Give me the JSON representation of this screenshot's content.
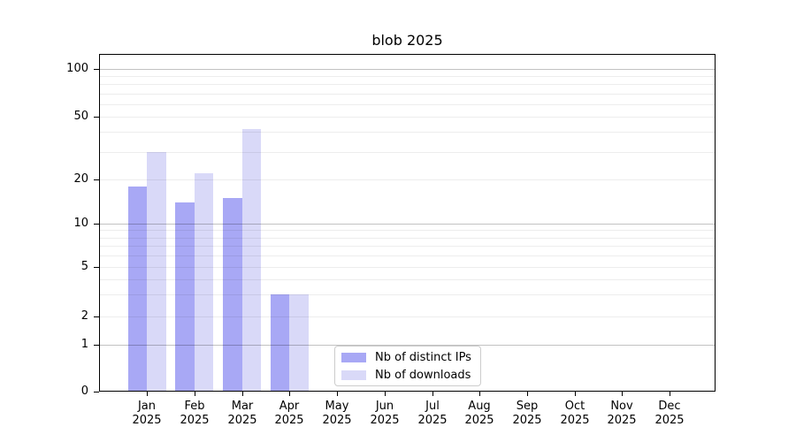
{
  "title": "blob 2025",
  "chart_data": {
    "type": "bar",
    "title": "blob 2025",
    "months": [
      "Jan",
      "Feb",
      "Mar",
      "Apr",
      "May",
      "Jun",
      "Jul",
      "Aug",
      "Sep",
      "Oct",
      "Nov",
      "Dec"
    ],
    "year": "2025",
    "categories": [
      "Jan 2025",
      "Feb 2025",
      "Mar 2025",
      "Apr 2025",
      "May 2025",
      "Jun 2025",
      "Jul 2025",
      "Aug 2025",
      "Sep 2025",
      "Oct 2025",
      "Nov 2025",
      "Dec 2025"
    ],
    "series": [
      {
        "name": "Nb of distinct IPs",
        "color": "#a8a8f5",
        "values": [
          18,
          14,
          15,
          3,
          0,
          0,
          0,
          0,
          0,
          0,
          0,
          0
        ]
      },
      {
        "name": "Nb of downloads",
        "color": "#d9d9f8",
        "values": [
          30,
          22,
          42,
          3,
          0,
          0,
          0,
          0,
          0,
          0,
          0,
          0
        ]
      }
    ],
    "yscale": "symlog",
    "ylim": [
      0,
      120
    ],
    "yticks": [
      0,
      1,
      2,
      5,
      10,
      20,
      50,
      100
    ],
    "major_gridlines": [
      1,
      10,
      100
    ],
    "minor_gridlines": [
      2,
      3,
      4,
      5,
      6,
      7,
      8,
      9,
      20,
      30,
      40,
      50,
      60,
      70,
      80,
      90
    ],
    "grid": true,
    "legend_position": "lower center"
  }
}
